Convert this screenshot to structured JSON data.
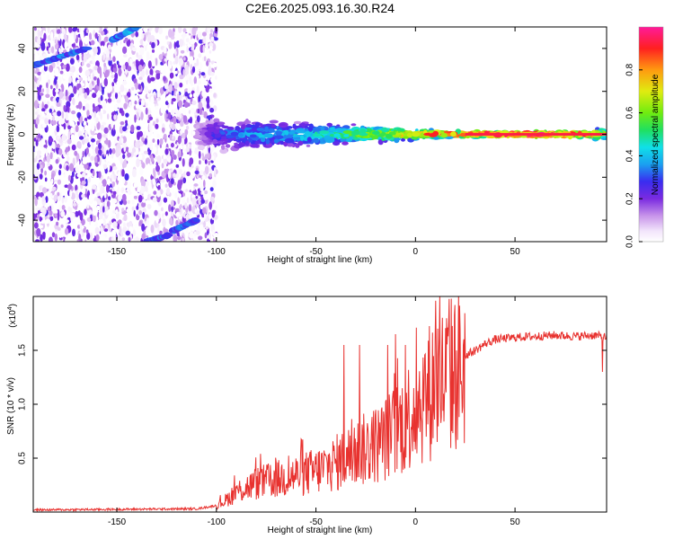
{
  "title": "C2E6.2025.093.16.30.R24",
  "chart_data": [
    {
      "type": "heatmap",
      "name": "spectrogram",
      "xlabel": "Height of straight line (km)",
      "ylabel": "Frequency (Hz)",
      "xlim": [
        -192,
        96
      ],
      "ylim": [
        -50,
        50
      ],
      "xticks": [
        -150,
        -100,
        -50,
        0,
        50
      ],
      "xtick_labels": [
        "-150",
        "-100",
        "-50",
        "0",
        "50"
      ],
      "yticks": [
        -40,
        -20,
        0,
        20,
        40
      ],
      "ytick_labels": [
        "-40",
        "-20",
        "0",
        "20",
        "40"
      ],
      "colorbar": {
        "label": "Normalized spectral amplitude",
        "range": [
          0,
          1
        ],
        "ticks": [
          0.0,
          0.2,
          0.4,
          0.6,
          0.8
        ],
        "tick_labels": [
          "0.0",
          "0.2",
          "0.4",
          "0.6",
          "0.8"
        ]
      },
      "features": {
        "noise_region_x": [
          -192,
          -100
        ],
        "diagonal_streaks": [
          {
            "x": [
              -192,
              -165
            ],
            "y": [
              32,
              40
            ],
            "amplitude": 0.3
          },
          {
            "x": [
              -152,
              -140
            ],
            "y": [
              44,
              50
            ],
            "amplitude": 0.35
          },
          {
            "x": [
              -122,
              -110
            ],
            "y": [
              -45,
              -40
            ],
            "amplitude": 0.3
          },
          {
            "x": [
              -135,
              -124
            ],
            "y": [
              -50,
              -47
            ],
            "amplitude": 0.3
          }
        ],
        "signal_band": [
          {
            "x": -110,
            "spread": 6,
            "amplitude": 0.15
          },
          {
            "x": -100,
            "spread": 7,
            "amplitude": 0.3
          },
          {
            "x": -80,
            "spread": 6,
            "amplitude": 0.4
          },
          {
            "x": -60,
            "spread": 5,
            "amplitude": 0.45
          },
          {
            "x": -40,
            "spread": 4,
            "amplitude": 0.55
          },
          {
            "x": -20,
            "spread": 3,
            "amplitude": 0.7
          },
          {
            "x": 0,
            "spread": 2,
            "amplitude": 0.85
          },
          {
            "x": 20,
            "spread": 1.2,
            "amplitude": 0.95
          },
          {
            "x": 60,
            "spread": 1,
            "amplitude": 0.98
          },
          {
            "x": 85,
            "spread": 1.2,
            "amplitude": 0.95
          },
          {
            "x": 96,
            "spread": 3,
            "amplitude": 0.6
          }
        ]
      }
    },
    {
      "type": "line",
      "name": "snr",
      "xlabel": "Height of straight line (km)",
      "ylabel": "SNR (10 * v/v)",
      "exponent_label": "(x10",
      "exponent_power": "4",
      "exponent_close": ")",
      "xlim": [
        -192,
        96
      ],
      "ylim": [
        0,
        2.0
      ],
      "xticks": [
        -150,
        -100,
        -50,
        0,
        50
      ],
      "xtick_labels": [
        "-150",
        "-100",
        "-50",
        "0",
        "50"
      ],
      "yticks": [
        0.5,
        1.0,
        1.5
      ],
      "ytick_labels": [
        "0.5",
        "1.0",
        "1.5"
      ],
      "series": [
        {
          "name": "SNR",
          "color": "#e8322f",
          "envelope_x": [
            -192,
            -110,
            -100,
            -95,
            -90,
            -80,
            -70,
            -60,
            -50,
            -40,
            -30,
            -25,
            -20,
            -15,
            -10,
            -5,
            0,
            5,
            8,
            10,
            12,
            15,
            20,
            25,
            30,
            35,
            40,
            50,
            60,
            70,
            80,
            90,
            96
          ],
          "envelope_y": [
            0.02,
            0.03,
            0.06,
            0.12,
            0.2,
            0.28,
            0.32,
            0.36,
            0.4,
            0.48,
            0.58,
            0.62,
            0.66,
            0.72,
            0.8,
            0.9,
            1.05,
            1.15,
            1.2,
            1.3,
            1.28,
            1.3,
            1.38,
            1.45,
            1.5,
            1.56,
            1.6,
            1.62,
            1.63,
            1.64,
            1.63,
            1.64,
            1.62
          ],
          "noise_scale": 0.35,
          "spikes": [
            {
              "x": -36,
              "y": 1.55
            },
            {
              "x": -28,
              "y": 1.55
            },
            {
              "x": -14,
              "y": 1.55
            },
            {
              "x": -10,
              "y": 1.65
            },
            {
              "x": -5,
              "y": 1.55
            },
            {
              "x": 10,
              "y": 1.96
            },
            {
              "x": 11,
              "y": 0.65
            },
            {
              "x": 94,
              "y": 1.3
            }
          ]
        }
      ]
    }
  ]
}
